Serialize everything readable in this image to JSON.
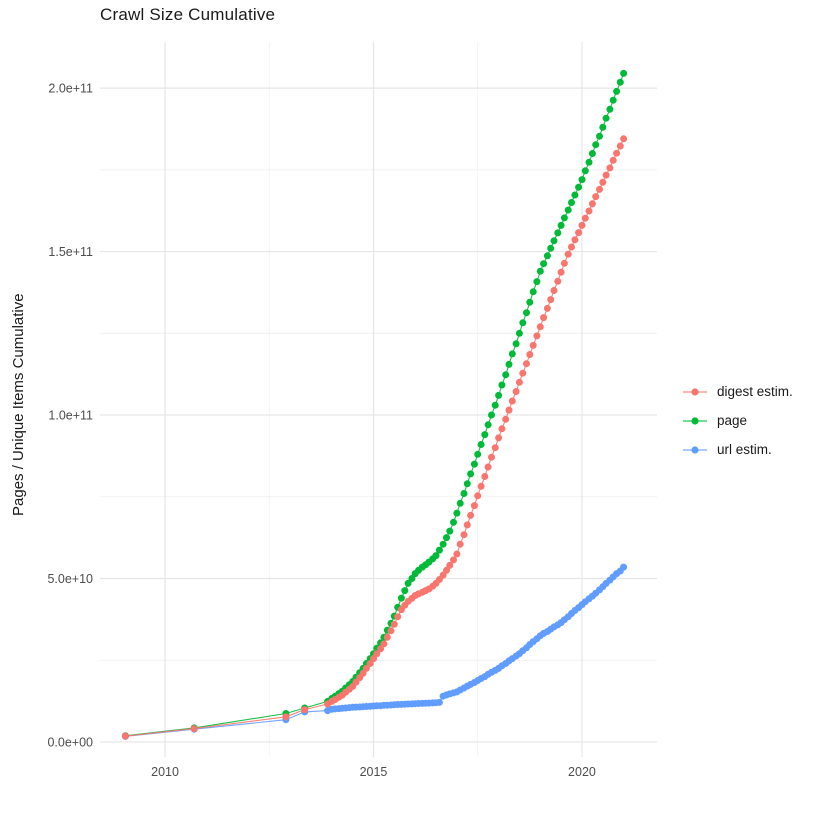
{
  "chart_data": {
    "type": "scatter",
    "title": "Crawl Size Cumulative",
    "xlabel": "",
    "ylabel": "Pages / Unique Items Cumulative",
    "values_unit": "billions (1e9 pages / items)",
    "grid": true,
    "legend_position": "right",
    "background_color": "#ffffff",
    "grid_major_color": "#e6e6e6",
    "grid_minor_color": "#efefef",
    "tick_text_color": "#4d4d4d",
    "xlim": [
      2008.44,
      2021.8
    ],
    "ylim": [
      -4.6,
      214.1
    ],
    "x_axis": {
      "ticks": [
        {
          "label": "2010",
          "year": 2010
        },
        {
          "label": "2015",
          "year": 2015
        },
        {
          "label": "2020",
          "year": 2020
        }
      ],
      "minor": [
        2012.5,
        2017.5
      ]
    },
    "y_axis": {
      "ticks": [
        {
          "label": "0.0e+00",
          "value": 0
        },
        {
          "label": "5.0e+10",
          "value": 50
        },
        {
          "label": "1.0e+11",
          "value": 100
        },
        {
          "label": "1.5e+11",
          "value": 150
        },
        {
          "label": "2.0e+11",
          "value": 200
        }
      ],
      "minor": [
        25,
        75,
        125,
        175
      ]
    },
    "series": [
      {
        "name": "digest estim.",
        "color": "#F8766D",
        "points": [
          [
            2009.05,
            1.8
          ],
          [
            2010.7,
            4.1
          ],
          [
            2012.9,
            7.7
          ],
          [
            2013.35,
            9.9
          ],
          [
            2013.9,
            11.6
          ],
          [
            2014.0,
            12.4
          ],
          [
            2014.08,
            13.0
          ],
          [
            2014.17,
            13.7
          ],
          [
            2014.25,
            14.3
          ],
          [
            2014.33,
            15.2
          ],
          [
            2014.42,
            16.1
          ],
          [
            2014.5,
            17.0
          ],
          [
            2014.58,
            18.3
          ],
          [
            2014.67,
            19.7
          ],
          [
            2014.75,
            21.0
          ],
          [
            2014.83,
            22.5
          ],
          [
            2014.92,
            24.0
          ],
          [
            2015.0,
            25.5
          ],
          [
            2015.08,
            27.0
          ],
          [
            2015.17,
            28.5
          ],
          [
            2015.25,
            30.0
          ],
          [
            2015.33,
            32.0
          ],
          [
            2015.42,
            34.0
          ],
          [
            2015.5,
            36.0
          ],
          [
            2015.58,
            38.3
          ],
          [
            2015.67,
            40.5
          ],
          [
            2015.75,
            41.8
          ],
          [
            2015.83,
            43.0
          ],
          [
            2015.92,
            43.9
          ],
          [
            2016.0,
            44.8
          ],
          [
            2016.08,
            45.3
          ],
          [
            2016.17,
            45.8
          ],
          [
            2016.25,
            46.3
          ],
          [
            2016.33,
            46.8
          ],
          [
            2016.42,
            47.6
          ],
          [
            2016.5,
            48.5
          ],
          [
            2016.58,
            49.7
          ],
          [
            2016.67,
            51.0
          ],
          [
            2016.75,
            52.5
          ],
          [
            2016.83,
            54.0
          ],
          [
            2016.92,
            55.7
          ],
          [
            2017.0,
            57.5
          ],
          [
            2017.08,
            60.5
          ],
          [
            2017.17,
            63.4
          ],
          [
            2017.25,
            66.4
          ],
          [
            2017.33,
            69.3
          ],
          [
            2017.42,
            72.3
          ],
          [
            2017.5,
            75.3
          ],
          [
            2017.58,
            78.2
          ],
          [
            2017.67,
            81.2
          ],
          [
            2017.75,
            84.1
          ],
          [
            2017.83,
            87.1
          ],
          [
            2017.92,
            90.0
          ],
          [
            2018.0,
            93.0
          ],
          [
            2018.08,
            95.8
          ],
          [
            2018.17,
            98.7
          ],
          [
            2018.25,
            101.5
          ],
          [
            2018.33,
            104.3
          ],
          [
            2018.42,
            107.2
          ],
          [
            2018.5,
            110.0
          ],
          [
            2018.58,
            112.8
          ],
          [
            2018.67,
            115.7
          ],
          [
            2018.75,
            118.5
          ],
          [
            2018.83,
            121.3
          ],
          [
            2018.92,
            124.2
          ],
          [
            2019.0,
            127.0
          ],
          [
            2019.08,
            129.8
          ],
          [
            2019.17,
            132.6
          ],
          [
            2019.25,
            135.3
          ],
          [
            2019.33,
            138.1
          ],
          [
            2019.42,
            140.9
          ],
          [
            2019.5,
            143.7
          ],
          [
            2019.58,
            146.4
          ],
          [
            2019.67,
            149.2
          ],
          [
            2019.75,
            151.4
          ],
          [
            2019.83,
            153.6
          ],
          [
            2019.92,
            155.8
          ],
          [
            2020.0,
            158.0
          ],
          [
            2020.08,
            160.2
          ],
          [
            2020.17,
            162.4
          ],
          [
            2020.25,
            164.6
          ],
          [
            2020.33,
            166.8
          ],
          [
            2020.42,
            169.0
          ],
          [
            2020.5,
            171.2
          ],
          [
            2020.58,
            173.4
          ],
          [
            2020.67,
            175.6
          ],
          [
            2020.75,
            177.9
          ],
          [
            2020.83,
            180.1
          ],
          [
            2020.92,
            182.3
          ],
          [
            2021.0,
            184.5
          ]
        ]
      },
      {
        "name": "page",
        "color": "#00BA38",
        "points": [
          [
            2009.05,
            1.9
          ],
          [
            2010.7,
            4.3
          ],
          [
            2012.9,
            8.7
          ],
          [
            2013.35,
            10.4
          ],
          [
            2013.9,
            12.4
          ],
          [
            2014.0,
            13.3
          ],
          [
            2014.08,
            14.0
          ],
          [
            2014.17,
            14.8
          ],
          [
            2014.25,
            15.5
          ],
          [
            2014.33,
            16.5
          ],
          [
            2014.42,
            17.5
          ],
          [
            2014.5,
            18.5
          ],
          [
            2014.58,
            19.8
          ],
          [
            2014.67,
            21.2
          ],
          [
            2014.75,
            22.5
          ],
          [
            2014.83,
            24.0
          ],
          [
            2014.92,
            25.5
          ],
          [
            2015.0,
            27.0
          ],
          [
            2015.08,
            28.7
          ],
          [
            2015.17,
            30.3
          ],
          [
            2015.25,
            32.0
          ],
          [
            2015.33,
            34.2
          ],
          [
            2015.42,
            36.3
          ],
          [
            2015.5,
            38.5
          ],
          [
            2015.58,
            41.2
          ],
          [
            2015.67,
            44.0
          ],
          [
            2015.75,
            46.3
          ],
          [
            2015.83,
            48.5
          ],
          [
            2015.92,
            50.0
          ],
          [
            2016.0,
            51.5
          ],
          [
            2016.08,
            52.5
          ],
          [
            2016.17,
            53.5
          ],
          [
            2016.25,
            54.2
          ],
          [
            2016.33,
            55.0
          ],
          [
            2016.42,
            56.0
          ],
          [
            2016.5,
            57.0
          ],
          [
            2016.58,
            58.7
          ],
          [
            2016.67,
            60.5
          ],
          [
            2016.75,
            62.5
          ],
          [
            2016.83,
            64.5
          ],
          [
            2016.92,
            67.2
          ],
          [
            2017.0,
            70.0
          ],
          [
            2017.08,
            73.0
          ],
          [
            2017.17,
            76.0
          ],
          [
            2017.25,
            79.0
          ],
          [
            2017.33,
            82.0
          ],
          [
            2017.42,
            85.0
          ],
          [
            2017.5,
            88.0
          ],
          [
            2017.58,
            91.0
          ],
          [
            2017.67,
            94.0
          ],
          [
            2017.75,
            97.0
          ],
          [
            2017.83,
            100.0
          ],
          [
            2017.92,
            103.0
          ],
          [
            2018.0,
            106.0
          ],
          [
            2018.08,
            109.2
          ],
          [
            2018.17,
            112.3
          ],
          [
            2018.25,
            115.5
          ],
          [
            2018.33,
            118.7
          ],
          [
            2018.42,
            121.8
          ],
          [
            2018.5,
            125.0
          ],
          [
            2018.58,
            128.2
          ],
          [
            2018.67,
            131.3
          ],
          [
            2018.75,
            134.5
          ],
          [
            2018.83,
            137.7
          ],
          [
            2018.92,
            140.8
          ],
          [
            2019.0,
            144.0
          ],
          [
            2019.08,
            146.3
          ],
          [
            2019.17,
            148.7
          ],
          [
            2019.25,
            151.0
          ],
          [
            2019.33,
            153.3
          ],
          [
            2019.42,
            155.7
          ],
          [
            2019.5,
            158.0
          ],
          [
            2019.58,
            160.3
          ],
          [
            2019.67,
            162.7
          ],
          [
            2019.75,
            165.0
          ],
          [
            2019.83,
            167.3
          ],
          [
            2019.92,
            169.7
          ],
          [
            2020.0,
            172.0
          ],
          [
            2020.08,
            174.7
          ],
          [
            2020.17,
            177.3
          ],
          [
            2020.25,
            180.0
          ],
          [
            2020.33,
            182.7
          ],
          [
            2020.42,
            185.3
          ],
          [
            2020.5,
            188.0
          ],
          [
            2020.58,
            190.8
          ],
          [
            2020.67,
            193.5
          ],
          [
            2020.75,
            196.3
          ],
          [
            2020.83,
            199.0
          ],
          [
            2020.92,
            201.8
          ],
          [
            2021.0,
            204.5
          ]
        ]
      },
      {
        "name": "url estim.",
        "color": "#619CFF",
        "points": [
          [
            2009.05,
            1.7
          ],
          [
            2010.7,
            3.9
          ],
          [
            2012.9,
            6.8
          ],
          [
            2013.35,
            9.2
          ],
          [
            2013.9,
            9.6
          ],
          [
            2014.0,
            10.0
          ],
          [
            2014.08,
            10.1
          ],
          [
            2014.17,
            10.2
          ],
          [
            2014.25,
            10.3
          ],
          [
            2014.33,
            10.4
          ],
          [
            2014.42,
            10.5
          ],
          [
            2014.5,
            10.6
          ],
          [
            2014.58,
            10.65
          ],
          [
            2014.67,
            10.7
          ],
          [
            2014.75,
            10.8
          ],
          [
            2014.83,
            10.85
          ],
          [
            2014.92,
            10.9
          ],
          [
            2015.0,
            11.0
          ],
          [
            2015.08,
            11.05
          ],
          [
            2015.17,
            11.1
          ],
          [
            2015.25,
            11.2
          ],
          [
            2015.33,
            11.25
          ],
          [
            2015.42,
            11.3
          ],
          [
            2015.5,
            11.4
          ],
          [
            2015.58,
            11.45
          ],
          [
            2015.67,
            11.5
          ],
          [
            2015.75,
            11.55
          ],
          [
            2015.83,
            11.6
          ],
          [
            2015.92,
            11.65
          ],
          [
            2016.0,
            11.7
          ],
          [
            2016.08,
            11.75
          ],
          [
            2016.17,
            11.8
          ],
          [
            2016.25,
            11.85
          ],
          [
            2016.33,
            11.9
          ],
          [
            2016.42,
            11.95
          ],
          [
            2016.5,
            12.0
          ],
          [
            2016.58,
            12.1
          ],
          [
            2016.67,
            14.0
          ],
          [
            2016.75,
            14.4
          ],
          [
            2016.83,
            14.7
          ],
          [
            2016.92,
            15.0
          ],
          [
            2017.0,
            15.3
          ],
          [
            2017.08,
            15.9
          ],
          [
            2017.17,
            16.5
          ],
          [
            2017.25,
            17.1
          ],
          [
            2017.33,
            17.6
          ],
          [
            2017.42,
            18.2
          ],
          [
            2017.5,
            18.8
          ],
          [
            2017.58,
            19.4
          ],
          [
            2017.67,
            20.0
          ],
          [
            2017.75,
            20.7
          ],
          [
            2017.83,
            21.3
          ],
          [
            2017.92,
            21.9
          ],
          [
            2018.0,
            22.5
          ],
          [
            2018.08,
            23.3
          ],
          [
            2018.17,
            24.0
          ],
          [
            2018.25,
            24.8
          ],
          [
            2018.33,
            25.5
          ],
          [
            2018.42,
            26.3
          ],
          [
            2018.5,
            27.0
          ],
          [
            2018.58,
            27.9
          ],
          [
            2018.67,
            28.8
          ],
          [
            2018.75,
            29.8
          ],
          [
            2018.83,
            30.7
          ],
          [
            2018.92,
            31.6
          ],
          [
            2019.0,
            32.5
          ],
          [
            2019.08,
            33.2
          ],
          [
            2019.17,
            33.8
          ],
          [
            2019.25,
            34.5
          ],
          [
            2019.33,
            35.2
          ],
          [
            2019.42,
            35.8
          ],
          [
            2019.5,
            36.5
          ],
          [
            2019.58,
            37.4
          ],
          [
            2019.67,
            38.3
          ],
          [
            2019.75,
            39.3
          ],
          [
            2019.83,
            40.2
          ],
          [
            2019.92,
            41.1
          ],
          [
            2020.0,
            42.0
          ],
          [
            2020.08,
            42.9
          ],
          [
            2020.17,
            43.8
          ],
          [
            2020.25,
            44.6
          ],
          [
            2020.33,
            45.5
          ],
          [
            2020.42,
            46.5
          ],
          [
            2020.5,
            47.5
          ],
          [
            2020.58,
            48.5
          ],
          [
            2020.67,
            49.5
          ],
          [
            2020.75,
            50.5
          ],
          [
            2020.83,
            51.5
          ],
          [
            2020.92,
            52.3
          ],
          [
            2021.0,
            53.5
          ]
        ]
      }
    ]
  }
}
